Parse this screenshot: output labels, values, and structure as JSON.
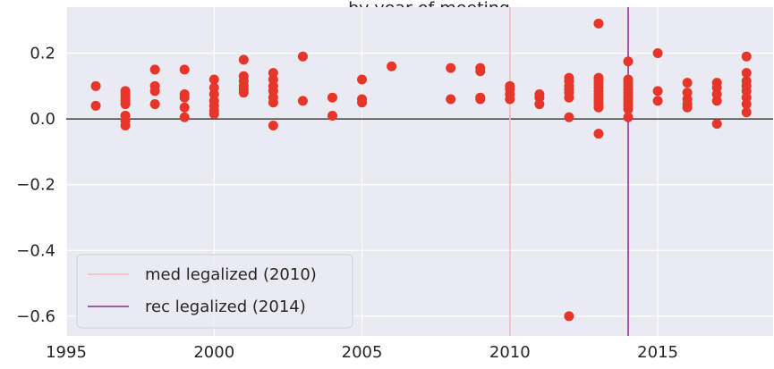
{
  "chart_data": {
    "type": "scatter",
    "title": "…by year of meeting",
    "xlim": [
      1995,
      2018.9
    ],
    "ylim": [
      -0.66,
      0.34
    ],
    "x_ticks": [
      1995,
      2000,
      2005,
      2010,
      2015
    ],
    "y_ticks": [
      0.2,
      0.0,
      -0.2,
      -0.4,
      -0.6
    ],
    "y_tick_labels": [
      "0.2",
      "0.0",
      "−0.2",
      "−0.4",
      "−0.6"
    ],
    "grid": true,
    "background_color": "#eaeaf2",
    "point_color": "#e8352a",
    "zero_line": true,
    "legend_position": "lower-left",
    "vlines": [
      {
        "name": "med legalized (2010)",
        "x": 2010,
        "color": "#f4b8c0"
      },
      {
        "name": "rec legalized (2014)",
        "x": 2014,
        "color": "#8b2a8c"
      }
    ],
    "points": [
      {
        "x": 1996,
        "y": 0.1
      },
      {
        "x": 1996,
        "y": 0.04
      },
      {
        "x": 1997,
        "y": 0.085
      },
      {
        "x": 1997,
        "y": 0.075
      },
      {
        "x": 1997,
        "y": 0.065
      },
      {
        "x": 1997,
        "y": 0.055
      },
      {
        "x": 1997,
        "y": 0.045
      },
      {
        "x": 1997,
        "y": 0.01
      },
      {
        "x": 1997,
        "y": -0.005
      },
      {
        "x": 1997,
        "y": -0.02
      },
      {
        "x": 1998,
        "y": 0.15
      },
      {
        "x": 1998,
        "y": 0.1
      },
      {
        "x": 1998,
        "y": 0.085
      },
      {
        "x": 1998,
        "y": 0.045
      },
      {
        "x": 1999,
        "y": 0.15
      },
      {
        "x": 1999,
        "y": 0.075
      },
      {
        "x": 1999,
        "y": 0.065
      },
      {
        "x": 1999,
        "y": 0.035
      },
      {
        "x": 1999,
        "y": 0.005
      },
      {
        "x": 2000,
        "y": 0.12
      },
      {
        "x": 2000,
        "y": 0.095
      },
      {
        "x": 2000,
        "y": 0.075
      },
      {
        "x": 2000,
        "y": 0.055
      },
      {
        "x": 2000,
        "y": 0.04
      },
      {
        "x": 2000,
        "y": 0.025
      },
      {
        "x": 2000,
        "y": 0.015
      },
      {
        "x": 2001,
        "y": 0.18
      },
      {
        "x": 2001,
        "y": 0.13
      },
      {
        "x": 2001,
        "y": 0.115
      },
      {
        "x": 2001,
        "y": 0.1
      },
      {
        "x": 2001,
        "y": 0.09
      },
      {
        "x": 2001,
        "y": 0.08
      },
      {
        "x": 2002,
        "y": 0.14
      },
      {
        "x": 2002,
        "y": 0.12
      },
      {
        "x": 2002,
        "y": 0.1
      },
      {
        "x": 2002,
        "y": 0.085
      },
      {
        "x": 2002,
        "y": 0.065
      },
      {
        "x": 2002,
        "y": 0.05
      },
      {
        "x": 2002,
        "y": -0.02
      },
      {
        "x": 2003,
        "y": 0.19
      },
      {
        "x": 2003,
        "y": 0.055
      },
      {
        "x": 2004,
        "y": 0.065
      },
      {
        "x": 2004,
        "y": 0.01
      },
      {
        "x": 2005,
        "y": 0.12
      },
      {
        "x": 2005,
        "y": 0.06
      },
      {
        "x": 2005,
        "y": 0.05
      },
      {
        "x": 2006,
        "y": 0.16
      },
      {
        "x": 2008,
        "y": 0.155
      },
      {
        "x": 2008,
        "y": 0.06
      },
      {
        "x": 2009,
        "y": 0.155
      },
      {
        "x": 2009,
        "y": 0.145
      },
      {
        "x": 2009,
        "y": 0.065
      },
      {
        "x": 2009,
        "y": 0.06
      },
      {
        "x": 2010,
        "y": 0.1
      },
      {
        "x": 2010,
        "y": 0.09
      },
      {
        "x": 2010,
        "y": 0.075
      },
      {
        "x": 2010,
        "y": 0.06
      },
      {
        "x": 2011,
        "y": 0.075
      },
      {
        "x": 2011,
        "y": 0.065
      },
      {
        "x": 2011,
        "y": 0.045
      },
      {
        "x": 2012,
        "y": 0.125
      },
      {
        "x": 2012,
        "y": 0.115
      },
      {
        "x": 2012,
        "y": 0.1
      },
      {
        "x": 2012,
        "y": 0.09
      },
      {
        "x": 2012,
        "y": 0.08
      },
      {
        "x": 2012,
        "y": 0.065
      },
      {
        "x": 2012,
        "y": 0.005
      },
      {
        "x": 2012,
        "y": -0.6
      },
      {
        "x": 2013,
        "y": 0.29
      },
      {
        "x": 2013,
        "y": 0.125
      },
      {
        "x": 2013,
        "y": 0.115
      },
      {
        "x": 2013,
        "y": 0.105
      },
      {
        "x": 2013,
        "y": 0.095
      },
      {
        "x": 2013,
        "y": 0.085
      },
      {
        "x": 2013,
        "y": 0.075
      },
      {
        "x": 2013,
        "y": 0.065
      },
      {
        "x": 2013,
        "y": 0.055
      },
      {
        "x": 2013,
        "y": 0.045
      },
      {
        "x": 2013,
        "y": 0.035
      },
      {
        "x": 2013,
        "y": -0.045
      },
      {
        "x": 2014,
        "y": 0.175
      },
      {
        "x": 2014,
        "y": 0.12
      },
      {
        "x": 2014,
        "y": 0.11
      },
      {
        "x": 2014,
        "y": 0.1
      },
      {
        "x": 2014,
        "y": 0.09
      },
      {
        "x": 2014,
        "y": 0.08
      },
      {
        "x": 2014,
        "y": 0.07
      },
      {
        "x": 2014,
        "y": 0.06
      },
      {
        "x": 2014,
        "y": 0.05
      },
      {
        "x": 2014,
        "y": 0.04
      },
      {
        "x": 2014,
        "y": 0.03
      },
      {
        "x": 2014,
        "y": 0.005
      },
      {
        "x": 2015,
        "y": 0.2
      },
      {
        "x": 2015,
        "y": 0.085
      },
      {
        "x": 2015,
        "y": 0.055
      },
      {
        "x": 2016,
        "y": 0.11
      },
      {
        "x": 2016,
        "y": 0.08
      },
      {
        "x": 2016,
        "y": 0.06
      },
      {
        "x": 2016,
        "y": 0.045
      },
      {
        "x": 2016,
        "y": 0.035
      },
      {
        "x": 2017,
        "y": 0.11
      },
      {
        "x": 2017,
        "y": 0.095
      },
      {
        "x": 2017,
        "y": 0.075
      },
      {
        "x": 2017,
        "y": 0.055
      },
      {
        "x": 2017,
        "y": -0.015
      },
      {
        "x": 2018,
        "y": 0.19
      },
      {
        "x": 2018,
        "y": 0.14
      },
      {
        "x": 2018,
        "y": 0.115
      },
      {
        "x": 2018,
        "y": 0.1
      },
      {
        "x": 2018,
        "y": 0.085
      },
      {
        "x": 2018,
        "y": 0.065
      },
      {
        "x": 2018,
        "y": 0.045
      },
      {
        "x": 2018,
        "y": 0.02
      }
    ]
  }
}
